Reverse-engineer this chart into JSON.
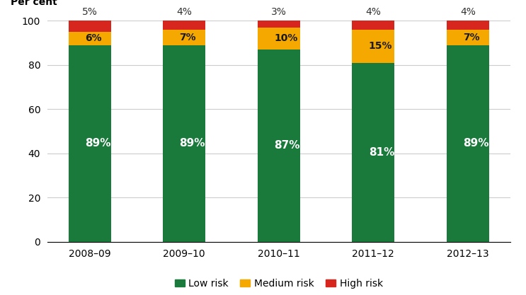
{
  "categories": [
    "2008–09",
    "2009–10",
    "2010–11",
    "2011–12",
    "2012–13"
  ],
  "low_risk": [
    89,
    89,
    87,
    81,
    89
  ],
  "medium_risk": [
    6,
    7,
    10,
    15,
    7
  ],
  "high_risk": [
    5,
    4,
    3,
    4,
    4
  ],
  "low_risk_labels": [
    "89%",
    "89%",
    "87%",
    "81%",
    "89%"
  ],
  "medium_risk_labels": [
    "6%",
    "7%",
    "10%",
    "15%",
    "7%"
  ],
  "high_risk_labels": [
    "5%",
    "4%",
    "3%",
    "4%",
    "4%"
  ],
  "low_risk_color": "#1a7a3c",
  "medium_risk_color": "#f5a800",
  "high_risk_color": "#d7261e",
  "ylabel": "Per cent",
  "ylim": [
    0,
    100
  ],
  "yticks": [
    0,
    20,
    40,
    60,
    80,
    100
  ],
  "legend_labels": [
    "Low risk",
    "Medium risk",
    "High risk"
  ],
  "bar_width": 0.45,
  "background_color": "#ffffff"
}
